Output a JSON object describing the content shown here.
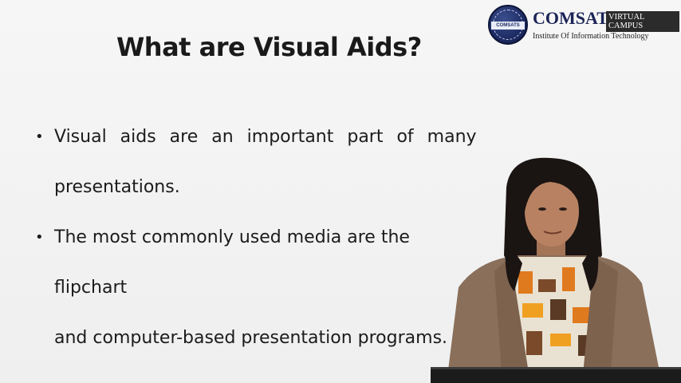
{
  "slide": {
    "title": "What are Visual Aids?",
    "bullets": [
      {
        "line1": "Visual aids are an important part of many",
        "line2": "presentations."
      },
      {
        "line1": "The most commonly used media are the flipchart",
        "line2": "and computer-based presentation programs."
      }
    ]
  },
  "logo": {
    "name": "COMSATS",
    "badge": "VIRTUAL CAMPUS",
    "subtitle": "Institute Of Information Technology",
    "seal_text": "COMSATS"
  },
  "colors": {
    "background": "#f2f2f2",
    "text": "#1c1c1c",
    "logo_navy": "#1b2456"
  }
}
